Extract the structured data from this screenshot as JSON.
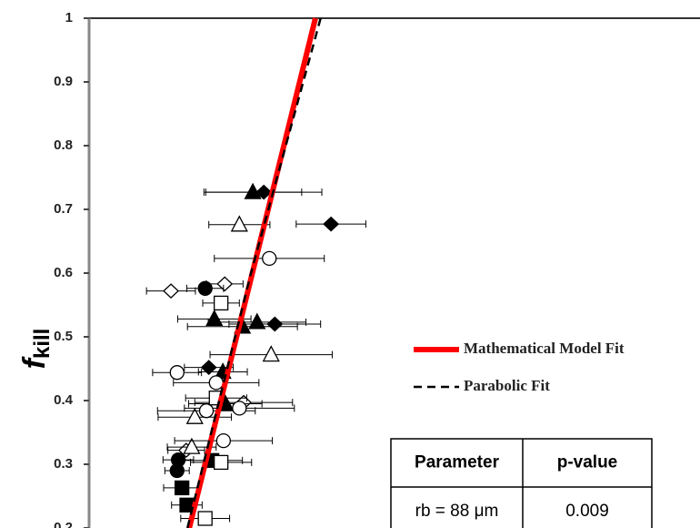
{
  "chart_data": {
    "type": "scatter",
    "ylabel": "f",
    "ylabel_subscript": "kill",
    "ylim": [
      0.2,
      1
    ],
    "yticks": [
      0.2,
      0.3,
      0.4,
      0.5,
      0.6,
      0.7,
      0.8,
      0.9,
      {
        "value": 1,
        "label": "1"
      }
    ],
    "xlim": [
      0,
      100
    ],
    "grid": false,
    "legend": "right",
    "series": [
      {
        "marker": "diamond",
        "filled": true,
        "color": "#000000",
        "x": [
          28.6,
          39.6,
          30.4,
          19.6
        ],
        "values": [
          0.727,
          0.677,
          0.52,
          0.452
        ],
        "xerr": [
          9.5,
          5.7,
          7.5,
          4
        ]
      },
      {
        "marker": "diamond",
        "filled": false,
        "color": "#000000",
        "x": [
          13.4,
          22.2,
          25.3,
          15.9
        ],
        "values": [
          0.572,
          0.583,
          0.397,
          0.322
        ],
        "xerr": [
          4,
          3,
          8,
          3
        ]
      },
      {
        "marker": "triangle",
        "filled": true,
        "color": "#000000",
        "x": [
          26.8,
          20.5,
          25.1,
          27.5,
          21.9,
          22.3
        ],
        "values": [
          0.727,
          0.528,
          0.516,
          0.523,
          0.445,
          0.395
        ],
        "xerr": [
          8,
          6,
          9,
          8,
          4,
          6
        ]
      },
      {
        "marker": "triangle",
        "filled": false,
        "color": "#000000",
        "x": [
          24.6,
          29.8,
          17.3,
          16.8
        ],
        "values": [
          0.676,
          0.472,
          0.374,
          0.327
        ],
        "xerr": [
          5,
          10,
          6,
          4
        ]
      },
      {
        "marker": "circle",
        "filled": true,
        "color": "#000000",
        "x": [
          19.0,
          14.6,
          14.4
        ],
        "values": [
          0.576,
          0.307,
          0.29
        ],
        "xerr": [
          3,
          2.5,
          2
        ]
      },
      {
        "marker": "circle",
        "filled": false,
        "color": "#000000",
        "x": [
          29.5,
          14.4,
          20.8,
          19.2,
          24.6,
          22.0
        ],
        "values": [
          0.623,
          0.444,
          0.428,
          0.384,
          0.388,
          0.337
        ],
        "xerr": [
          9,
          4,
          7,
          8,
          9,
          8
        ]
      },
      {
        "marker": "square",
        "filled": true,
        "color": "#000000",
        "x": [
          20.1,
          15.2,
          16.0
        ],
        "values": [
          0.306,
          0.263,
          0.236
        ],
        "xerr": [
          5,
          3,
          2.5
        ]
      },
      {
        "marker": "square",
        "filled": false,
        "color": "#000000",
        "x": [
          21.6,
          20.8,
          21.6,
          19.0
        ],
        "values": [
          0.553,
          0.404,
          0.303,
          0.215
        ],
        "xerr": [
          3,
          5,
          5,
          4
        ]
      },
      {
        "name": "Mathematical Model Fit",
        "type": "line",
        "color": "#ff0000",
        "dash": false,
        "x": [
          16.4,
          37.05
        ],
        "values": [
          0.2,
          1
        ]
      },
      {
        "name": "Parabolic Fit",
        "type": "line",
        "color": "#000000",
        "dash": true,
        "x": [
          16.1,
          26.5,
          37.9
        ],
        "values": [
          0.2,
          0.6,
          1
        ]
      }
    ],
    "table": {
      "header": [
        "Parameter",
        "p-value"
      ],
      "rows": [
        [
          "rb = 88 μm",
          "0.009"
        ]
      ]
    }
  }
}
